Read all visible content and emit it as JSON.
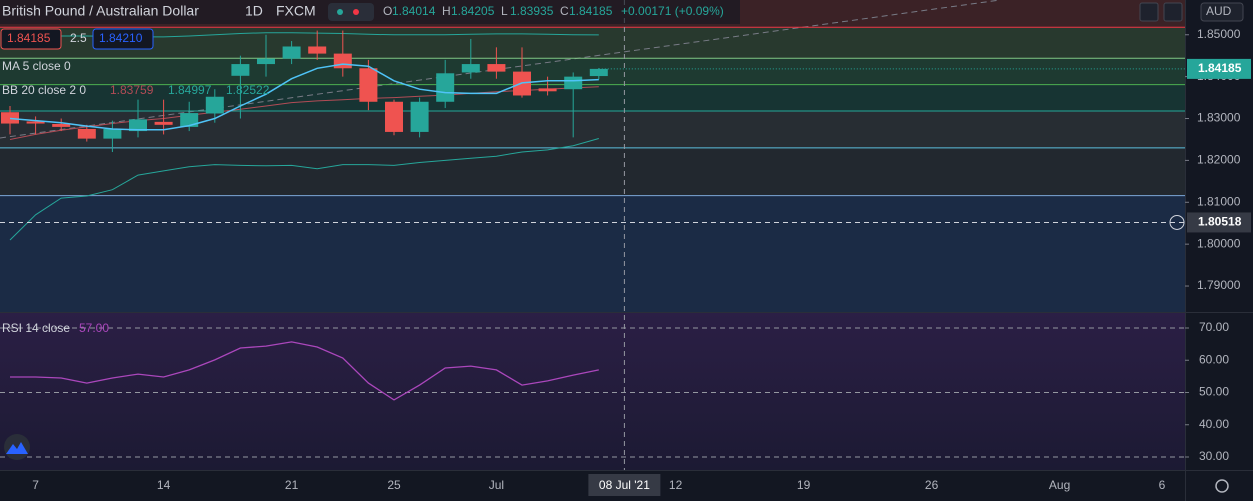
{
  "chart_data": [
    {
      "type": "candlestick",
      "header": {
        "title": "British Pound / Australian Dollar",
        "interval": "1D",
        "exchange": "FXCM",
        "ohlc": [
          {
            "key": "O",
            "value": 1.84014
          },
          {
            "key": "H",
            "value": 1.84205
          },
          {
            "key": "L",
            "value": 1.83935
          },
          {
            "key": "C",
            "value": 1.84185
          }
        ],
        "change": "+0.00171 (+0.09%)",
        "currency": "AUD"
      },
      "quote": {
        "bid": 1.84185,
        "spread": 2.5,
        "ask": {
          "value": 1.8421,
          "label": "1.84210"
        }
      },
      "categories": [
        null,
        "7",
        null,
        null,
        null,
        null,
        "14",
        null,
        null,
        null,
        null,
        "21",
        null,
        null,
        null,
        "25",
        null,
        null,
        null,
        "Jul",
        null,
        null,
        null,
        null,
        "08 Jul '21",
        null,
        "12",
        null,
        null,
        null,
        null,
        "19",
        null,
        null,
        null,
        null,
        "26",
        null,
        null,
        null,
        null,
        "Aug",
        null,
        null,
        null,
        "6"
      ],
      "open": [
        1.8315,
        1.8293,
        1.8287,
        1.8275,
        1.8252,
        1.827,
        1.8292,
        1.828,
        1.8312,
        1.8402,
        1.843,
        1.8443,
        1.8472,
        1.8455,
        1.842,
        1.834,
        1.8268,
        1.834,
        1.841,
        1.843,
        1.8412,
        1.8372,
        1.837,
        1.84014,
        null,
        null,
        null,
        null,
        null,
        null,
        null,
        null,
        null,
        null,
        null,
        null,
        null,
        null,
        null,
        null,
        null,
        null,
        null,
        null,
        null,
        null
      ],
      "high": [
        1.833,
        1.8305,
        1.83,
        1.8285,
        1.8295,
        1.8345,
        1.8345,
        1.834,
        1.837,
        1.845,
        1.85,
        1.8485,
        1.851,
        1.851,
        1.844,
        1.8345,
        1.835,
        1.844,
        1.849,
        1.847,
        1.847,
        1.84,
        1.841,
        1.84205,
        null,
        null,
        null,
        null,
        null,
        null,
        null,
        null,
        null,
        null,
        null,
        null,
        null,
        null,
        null,
        null,
        null,
        null,
        null,
        null,
        null,
        null
      ],
      "low": [
        1.8262,
        1.8262,
        1.827,
        1.8245,
        1.822,
        1.8255,
        1.8262,
        1.827,
        1.829,
        1.83,
        1.84,
        1.843,
        1.844,
        1.84,
        1.832,
        1.826,
        1.8255,
        1.8325,
        1.8395,
        1.8395,
        1.835,
        1.8355,
        1.8255,
        1.83935,
        null,
        null,
        null,
        null,
        null,
        null,
        null,
        null,
        null,
        null,
        null,
        null,
        null,
        null,
        null,
        null,
        null,
        null,
        null,
        null,
        null,
        null
      ],
      "close": [
        1.8288,
        1.8288,
        1.828,
        1.8252,
        1.8275,
        1.8298,
        1.8285,
        1.8313,
        1.8352,
        1.843,
        1.8443,
        1.8472,
        1.8455,
        1.842,
        1.834,
        1.8268,
        1.834,
        1.8408,
        1.843,
        1.8412,
        1.8355,
        1.8365,
        1.84,
        1.84185,
        null,
        null,
        null,
        null,
        null,
        null,
        null,
        null,
        null,
        null,
        null,
        null,
        null,
        null,
        null,
        null,
        null,
        null,
        null,
        null,
        null,
        null
      ],
      "up_color": "#26a69a",
      "down_color": "#ef5350",
      "series": [
        {
          "name": "MA 5 close 0",
          "color": "#4fc3f7",
          "values": [
            1.83,
            1.8295,
            1.829,
            1.8282,
            1.8275,
            1.8273,
            1.8273,
            1.8283,
            1.83,
            1.833,
            1.8358,
            1.8395,
            1.842,
            1.843,
            1.8425,
            1.839,
            1.837,
            1.8362,
            1.836,
            1.836,
            1.8385,
            1.839,
            1.839,
            1.8393,
            null,
            null,
            null,
            null,
            null,
            null,
            null,
            null,
            null,
            null,
            null,
            null,
            null,
            null,
            null,
            null,
            null,
            null,
            null,
            null,
            null,
            null
          ]
        },
        {
          "name": "BB 20 close 2 0",
          "color": "#26a69a",
          "values": [
            1.849,
            1.8495,
            1.8497,
            1.8497,
            1.8496,
            1.8495,
            1.8495,
            1.8497,
            1.85,
            1.8503,
            1.8505,
            1.8505,
            1.8504,
            1.8503,
            1.8501,
            1.85,
            1.85,
            1.85,
            1.8501,
            1.8502,
            1.8502,
            1.8501,
            1.85,
            1.84997,
            null,
            null,
            null,
            null,
            null,
            null,
            null,
            null,
            null,
            null,
            null,
            null,
            null,
            null,
            null,
            null,
            null,
            null,
            null,
            null,
            null,
            null
          ]
        },
        {
          "color": "#b24c56",
          "values": [
            1.825,
            1.8262,
            1.8272,
            1.828,
            1.8288,
            1.8295,
            1.83,
            1.8308,
            1.8315,
            1.8322,
            1.833,
            1.8338,
            1.8342,
            1.8345,
            1.8348,
            1.835,
            1.8353,
            1.8356,
            1.836,
            1.8364,
            1.8367,
            1.837,
            1.8373,
            1.83759,
            null,
            null,
            null,
            null,
            null,
            null,
            null,
            null,
            null,
            null,
            null,
            null,
            null,
            null,
            null,
            null,
            null,
            null,
            null,
            null,
            null,
            null
          ]
        },
        {
          "color": "#26a69a",
          "values": [
            1.801,
            1.807,
            1.811,
            1.8115,
            1.813,
            1.8165,
            1.8175,
            1.8185,
            1.819,
            1.8188,
            1.8187,
            1.8188,
            1.818,
            1.819,
            1.819,
            1.8188,
            1.8195,
            1.82,
            1.8205,
            1.821,
            1.822,
            1.8225,
            1.8235,
            1.82522,
            null,
            null,
            null,
            null,
            null,
            null,
            null,
            null,
            null,
            null,
            null,
            null,
            null,
            null,
            null,
            null,
            null,
            null,
            null,
            null,
            null,
            null
          ]
        }
      ],
      "levels": [
        {
          "value": 1.8518,
          "color": "#f23645",
          "band": "#3b2226"
        },
        {
          "value": 1.8444,
          "color": "#81c784",
          "band": "#28392e"
        },
        {
          "value": 1.8381,
          "color": "#4caf50",
          "band": "#1e3a31"
        },
        {
          "value": 1.8318,
          "color": "#26a69a",
          "band": "#173433"
        },
        {
          "value": 1.823,
          "color": "#5bc0de",
          "band": "#272d33"
        },
        {
          "value": 1.8116,
          "color": "#7da7d9",
          "band": "#22282f"
        }
      ],
      "bottom_band": "#1b2b45",
      "crosshair_price": 1.80518,
      "ylim": [
        1.7838,
        1.8583
      ],
      "yticks": [
        {
          "value": 1.85,
          "label": "1.85000"
        },
        {
          "value": 1.84,
          "label": "1.84000"
        },
        {
          "value": 1.83,
          "label": "1.83000"
        },
        {
          "value": 1.82,
          "label": "1.82000"
        },
        {
          "value": 1.81,
          "label": "1.81000"
        },
        {
          "value": 1.8,
          "label": "1.80000"
        },
        {
          "value": 1.79,
          "label": "1.79000"
        }
      ]
    },
    {
      "type": "line",
      "series": [
        {
          "name": "RSI 14 close",
          "color": "#ab47bc",
          "values": [
            54.8,
            54.8,
            54.5,
            52.9,
            54.5,
            55.7,
            54.8,
            57.0,
            60.1,
            63.8,
            64.4,
            65.7,
            64.1,
            60.7,
            52.9,
            47.7,
            52.3,
            57.6,
            58.2,
            57.0,
            52.3,
            53.6,
            55.4,
            57.0,
            null,
            null,
            null,
            null,
            null,
            null,
            null,
            null,
            null,
            null,
            null,
            null,
            null,
            null,
            null,
            null,
            null,
            null,
            null,
            null,
            null,
            null
          ],
          "value_labels": [
            null,
            null,
            null,
            null,
            null,
            null,
            null,
            null,
            null,
            null,
            null,
            null,
            null,
            null,
            null,
            null,
            null,
            null,
            null,
            null,
            null,
            null,
            null,
            "57.00",
            null,
            null,
            null,
            null,
            null,
            null,
            null,
            null,
            null,
            null,
            null,
            null,
            null,
            null,
            null,
            null,
            null,
            null,
            null,
            null,
            null,
            null
          ]
        }
      ],
      "levels": [
        70,
        50,
        30
      ],
      "ylim": [
        25.97,
        74.65
      ],
      "yticks": [
        {
          "value": 70,
          "label": "70.00"
        },
        {
          "value": 60,
          "label": "60.00"
        },
        {
          "value": 50,
          "label": "50.00"
        },
        {
          "value": 40,
          "label": "40.00"
        },
        {
          "value": 30,
          "label": "30.00"
        }
      ]
    }
  ]
}
